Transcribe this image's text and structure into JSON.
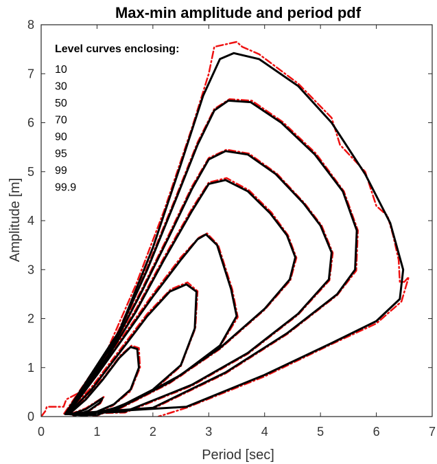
{
  "chart_data": {
    "type": "line",
    "title": "Max-min amplitude and period pdf",
    "xlabel": "Period [sec]",
    "ylabel": "Amplitude [m]",
    "xlim": [
      0,
      7
    ],
    "ylim": [
      0,
      8
    ],
    "xticks": [
      0,
      1,
      2,
      3,
      4,
      5,
      6,
      7
    ],
    "yticks": [
      0,
      1,
      2,
      3,
      4,
      5,
      6,
      7,
      8
    ],
    "grid": false,
    "legend": {
      "title": "Level curves enclosing:",
      "levels": [
        "10",
        "30",
        "50",
        "70",
        "90",
        "95",
        "99",
        "99.9"
      ],
      "placement": "top-left"
    },
    "colors": {
      "theoretical": "#000000",
      "empirical": "#ee1111",
      "axes": "#262626"
    },
    "series": [
      {
        "level": "10",
        "style": "solid",
        "points": [
          [
            0.55,
            0.05
          ],
          [
            0.8,
            0.15
          ],
          [
            1.0,
            0.3
          ],
          [
            1.1,
            0.38
          ],
          [
            1.05,
            0.28
          ],
          [
            0.85,
            0.12
          ],
          [
            0.6,
            0.02
          ],
          [
            0.55,
            0.05
          ]
        ]
      },
      {
        "level": "30",
        "style": "solid",
        "points": [
          [
            0.5,
            0.05
          ],
          [
            0.8,
            0.35
          ],
          [
            1.1,
            0.75
          ],
          [
            1.4,
            1.2
          ],
          [
            1.6,
            1.42
          ],
          [
            1.72,
            1.38
          ],
          [
            1.75,
            1.0
          ],
          [
            1.6,
            0.55
          ],
          [
            1.3,
            0.25
          ],
          [
            0.9,
            0.05
          ],
          [
            0.5,
            0.05
          ]
        ]
      },
      {
        "level": "50",
        "style": "solid",
        "points": [
          [
            0.48,
            0.05
          ],
          [
            0.9,
            0.55
          ],
          [
            1.4,
            1.3
          ],
          [
            1.9,
            2.05
          ],
          [
            2.3,
            2.55
          ],
          [
            2.6,
            2.7
          ],
          [
            2.78,
            2.55
          ],
          [
            2.75,
            1.8
          ],
          [
            2.5,
            1.05
          ],
          [
            2.0,
            0.55
          ],
          [
            1.4,
            0.2
          ],
          [
            0.8,
            0.02
          ],
          [
            0.48,
            0.05
          ]
        ]
      },
      {
        "level": "70",
        "style": "solid",
        "points": [
          [
            0.47,
            0.05
          ],
          [
            1.0,
            0.85
          ],
          [
            1.5,
            1.65
          ],
          [
            2.0,
            2.45
          ],
          [
            2.5,
            3.2
          ],
          [
            2.8,
            3.62
          ],
          [
            2.95,
            3.72
          ],
          [
            3.15,
            3.5
          ],
          [
            3.4,
            2.6
          ],
          [
            3.5,
            2.05
          ],
          [
            3.2,
            1.45
          ],
          [
            2.5,
            0.85
          ],
          [
            1.7,
            0.35
          ],
          [
            1.0,
            0.03
          ],
          [
            0.47,
            0.05
          ]
        ]
      },
      {
        "level": "90",
        "style": "solid",
        "points": [
          [
            0.46,
            0.05
          ],
          [
            1.1,
            1.05
          ],
          [
            1.7,
            2.15
          ],
          [
            2.2,
            3.2
          ],
          [
            2.7,
            4.2
          ],
          [
            3.0,
            4.75
          ],
          [
            3.3,
            4.83
          ],
          [
            3.7,
            4.6
          ],
          [
            4.1,
            4.15
          ],
          [
            4.4,
            3.7
          ],
          [
            4.55,
            3.25
          ],
          [
            4.45,
            2.8
          ],
          [
            4.0,
            2.2
          ],
          [
            3.2,
            1.4
          ],
          [
            2.3,
            0.7
          ],
          [
            1.3,
            0.12
          ],
          [
            0.46,
            0.05
          ]
        ]
      },
      {
        "level": "95",
        "style": "solid",
        "points": [
          [
            0.45,
            0.05
          ],
          [
            1.2,
            1.25
          ],
          [
            1.8,
            2.55
          ],
          [
            2.3,
            3.7
          ],
          [
            2.7,
            4.65
          ],
          [
            3.0,
            5.25
          ],
          [
            3.3,
            5.42
          ],
          [
            3.7,
            5.35
          ],
          [
            4.2,
            4.95
          ],
          [
            4.7,
            4.35
          ],
          [
            5.0,
            3.9
          ],
          [
            5.2,
            3.35
          ],
          [
            5.15,
            2.8
          ],
          [
            4.6,
            2.1
          ],
          [
            3.7,
            1.3
          ],
          [
            2.7,
            0.65
          ],
          [
            1.5,
            0.1
          ],
          [
            0.45,
            0.05
          ]
        ]
      },
      {
        "level": "99",
        "style": "solid",
        "points": [
          [
            0.44,
            0.05
          ],
          [
            1.3,
            1.5
          ],
          [
            1.9,
            3.0
          ],
          [
            2.4,
            4.4
          ],
          [
            2.8,
            5.55
          ],
          [
            3.1,
            6.25
          ],
          [
            3.35,
            6.45
          ],
          [
            3.75,
            6.42
          ],
          [
            4.3,
            6.0
          ],
          [
            4.9,
            5.35
          ],
          [
            5.4,
            4.6
          ],
          [
            5.65,
            3.8
          ],
          [
            5.62,
            3.0
          ],
          [
            5.3,
            2.5
          ],
          [
            4.4,
            1.7
          ],
          [
            3.3,
            0.9
          ],
          [
            2.0,
            0.18
          ],
          [
            0.44,
            0.05
          ]
        ]
      },
      {
        "level": "99.9",
        "style": "solid",
        "points": [
          [
            0.43,
            0.05
          ],
          [
            1.4,
            1.75
          ],
          [
            2.0,
            3.45
          ],
          [
            2.5,
            5.15
          ],
          [
            2.9,
            6.55
          ],
          [
            3.2,
            7.3
          ],
          [
            3.45,
            7.42
          ],
          [
            3.9,
            7.3
          ],
          [
            4.6,
            6.75
          ],
          [
            5.2,
            6.0
          ],
          [
            5.8,
            4.95
          ],
          [
            6.25,
            3.95
          ],
          [
            6.48,
            3.0
          ],
          [
            6.42,
            2.4
          ],
          [
            6.0,
            1.95
          ],
          [
            5.2,
            1.5
          ],
          [
            4.0,
            0.85
          ],
          [
            2.6,
            0.2
          ],
          [
            0.43,
            0.05
          ]
        ]
      },
      {
        "level": "10",
        "style": "dashdot",
        "points": [
          [
            0.52,
            0.05
          ],
          [
            0.8,
            0.17
          ],
          [
            1.02,
            0.33
          ],
          [
            1.12,
            0.4
          ],
          [
            1.06,
            0.27
          ],
          [
            0.84,
            0.1
          ],
          [
            0.58,
            0.02
          ],
          [
            0.52,
            0.05
          ]
        ]
      },
      {
        "level": "30",
        "style": "dashdot",
        "points": [
          [
            0.48,
            0.06
          ],
          [
            0.8,
            0.38
          ],
          [
            1.12,
            0.8
          ],
          [
            1.42,
            1.25
          ],
          [
            1.62,
            1.45
          ],
          [
            1.75,
            1.4
          ],
          [
            1.77,
            1.0
          ],
          [
            1.6,
            0.52
          ],
          [
            1.28,
            0.22
          ],
          [
            0.88,
            0.04
          ],
          [
            0.48,
            0.06
          ]
        ]
      },
      {
        "level": "50",
        "style": "dashdot",
        "points": [
          [
            0.45,
            0.06
          ],
          [
            0.9,
            0.6
          ],
          [
            1.4,
            1.35
          ],
          [
            1.9,
            2.1
          ],
          [
            2.32,
            2.6
          ],
          [
            2.62,
            2.74
          ],
          [
            2.8,
            2.56
          ],
          [
            2.76,
            1.8
          ],
          [
            2.5,
            1.03
          ],
          [
            2.0,
            0.52
          ],
          [
            1.4,
            0.18
          ],
          [
            0.8,
            0.02
          ],
          [
            0.45,
            0.06
          ]
        ]
      },
      {
        "level": "70",
        "style": "dashdot",
        "points": [
          [
            0.44,
            0.06
          ],
          [
            1.0,
            0.9
          ],
          [
            1.5,
            1.7
          ],
          [
            2.0,
            2.5
          ],
          [
            2.5,
            3.25
          ],
          [
            2.82,
            3.65
          ],
          [
            2.97,
            3.74
          ],
          [
            3.17,
            3.5
          ],
          [
            3.42,
            2.6
          ],
          [
            3.52,
            2.03
          ],
          [
            3.2,
            1.43
          ],
          [
            2.5,
            0.83
          ],
          [
            1.7,
            0.33
          ],
          [
            1.0,
            0.02
          ],
          [
            0.44,
            0.06
          ]
        ]
      },
      {
        "level": "90",
        "style": "dashdot",
        "points": [
          [
            0.43,
            0.06
          ],
          [
            1.1,
            1.1
          ],
          [
            1.7,
            2.2
          ],
          [
            2.2,
            3.25
          ],
          [
            2.7,
            4.25
          ],
          [
            3.0,
            4.78
          ],
          [
            3.32,
            4.87
          ],
          [
            3.72,
            4.62
          ],
          [
            4.12,
            4.17
          ],
          [
            4.42,
            3.7
          ],
          [
            4.57,
            3.24
          ],
          [
            4.46,
            2.78
          ],
          [
            4.0,
            2.18
          ],
          [
            3.2,
            1.38
          ],
          [
            2.3,
            0.68
          ],
          [
            1.3,
            0.1
          ],
          [
            0.43,
            0.06
          ]
        ]
      },
      {
        "level": "95",
        "style": "dashdot",
        "points": [
          [
            0.42,
            0.06
          ],
          [
            1.2,
            1.3
          ],
          [
            1.8,
            2.6
          ],
          [
            2.3,
            3.75
          ],
          [
            2.7,
            4.7
          ],
          [
            3.0,
            5.28
          ],
          [
            3.32,
            5.45
          ],
          [
            3.72,
            5.37
          ],
          [
            4.22,
            4.96
          ],
          [
            4.72,
            4.35
          ],
          [
            5.02,
            3.9
          ],
          [
            5.22,
            3.34
          ],
          [
            5.16,
            2.78
          ],
          [
            4.6,
            2.08
          ],
          [
            3.7,
            1.28
          ],
          [
            2.7,
            0.63
          ],
          [
            1.5,
            0.08
          ],
          [
            0.42,
            0.06
          ]
        ]
      },
      {
        "level": "99",
        "style": "dashdot",
        "points": [
          [
            0.41,
            0.06
          ],
          [
            1.3,
            1.55
          ],
          [
            1.9,
            3.05
          ],
          [
            2.4,
            4.45
          ],
          [
            2.8,
            5.6
          ],
          [
            3.1,
            6.28
          ],
          [
            3.37,
            6.48
          ],
          [
            3.77,
            6.45
          ],
          [
            4.32,
            6.02
          ],
          [
            4.92,
            5.37
          ],
          [
            5.42,
            4.6
          ],
          [
            5.67,
            3.8
          ],
          [
            5.64,
            2.98
          ],
          [
            5.3,
            2.48
          ],
          [
            4.4,
            1.68
          ],
          [
            3.3,
            0.88
          ],
          [
            2.0,
            0.16
          ],
          [
            0.41,
            0.06
          ]
        ]
      },
      {
        "level": "99.9",
        "style": "dashdot",
        "points": [
          [
            0.0,
            0.0
          ],
          [
            0.08,
            0.12
          ],
          [
            0.1,
            0.2
          ],
          [
            0.4,
            0.2
          ],
          [
            0.45,
            0.35
          ],
          [
            0.7,
            0.5
          ],
          [
            1.2,
            1.4
          ],
          [
            1.7,
            2.7
          ],
          [
            2.2,
            4.2
          ],
          [
            2.7,
            5.9
          ],
          [
            3.0,
            7.0
          ],
          [
            3.1,
            7.55
          ],
          [
            3.3,
            7.6
          ],
          [
            3.5,
            7.65
          ],
          [
            3.6,
            7.55
          ],
          [
            3.9,
            7.4
          ],
          [
            4.6,
            6.8
          ],
          [
            5.2,
            6.1
          ],
          [
            5.35,
            5.55
          ],
          [
            5.8,
            5.0
          ],
          [
            6.0,
            4.3
          ],
          [
            6.2,
            4.1
          ],
          [
            6.3,
            3.7
          ],
          [
            6.4,
            3.2
          ],
          [
            6.42,
            2.75
          ],
          [
            6.5,
            2.75
          ],
          [
            6.58,
            2.85
          ],
          [
            6.45,
            2.35
          ],
          [
            6.0,
            1.9
          ],
          [
            5.2,
            1.48
          ],
          [
            4.0,
            0.82
          ],
          [
            2.6,
            0.18
          ],
          [
            2.1,
            0.0
          ]
        ]
      }
    ]
  }
}
